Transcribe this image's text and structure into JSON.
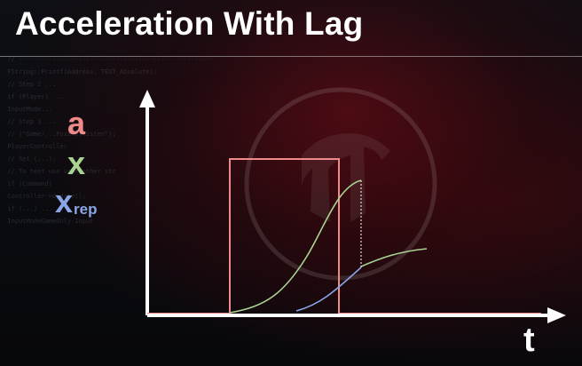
{
  "slide": {
    "title": "Acceleration With Lag",
    "colors": {
      "a": "#ee8a8a",
      "x": "#a8d490",
      "xrep": "#8aa6e6",
      "axes": "#ffffff"
    }
  },
  "legend": {
    "a": "a",
    "x": "x",
    "xrep_main": "x",
    "xrep_sub": "rep"
  },
  "axis": {
    "t_label": "t"
  }
}
